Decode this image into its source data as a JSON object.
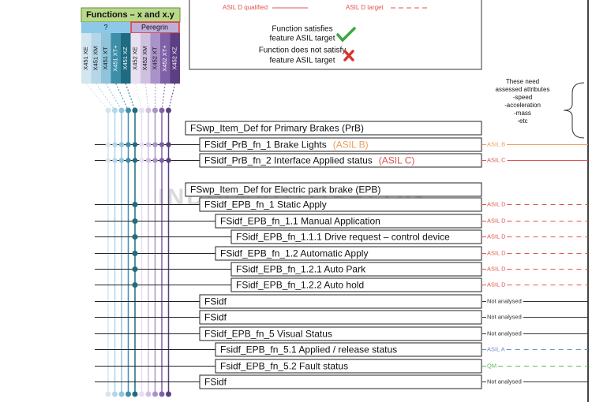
{
  "header": {
    "title": "Functions – x and x.y",
    "group_a": "?",
    "group_b": "Peregrin"
  },
  "columns": [
    {
      "label": "X451 XE",
      "color": "#d3e6f0"
    },
    {
      "label": "X451 XM",
      "color": "#b4d6e7"
    },
    {
      "label": "X451 XT",
      "color": "#8fc4da"
    },
    {
      "label": "X451 XT+",
      "color": "#3d8ea8"
    },
    {
      "label": "X451 XZ",
      "color": "#1f6b80"
    },
    {
      "label": "X452 XE",
      "color": "#e8dff0"
    },
    {
      "label": "X452 XM",
      "color": "#cfc0e0"
    },
    {
      "label": "X452 XT",
      "color": "#aa93c8"
    },
    {
      "label": "X452 XT+",
      "color": "#7f61a8"
    },
    {
      "label": "X452 XZ",
      "color": "#5b3f82"
    }
  ],
  "legend": {
    "qualified": "ASIL D qualified",
    "target": "ASIL D target",
    "satisfies": [
      "Function satisfies",
      "feature ASIL target"
    ],
    "not_satisfies": [
      "Function does not satisfy",
      "feature ASIL target"
    ]
  },
  "note": [
    "These need",
    "assessed attributes",
    "-speed",
    "-acceleration",
    "-mass",
    "-etc"
  ],
  "watermark": "INDIANAUTOSBLOG",
  "rows": [
    {
      "label": "FSwp_Item_Def for Primary Brakes (PrB)",
      "level": 0
    },
    {
      "label": "FSidf_PrB_fn_1 Brake Lights",
      "tag": "(ASIL B)",
      "level": 1,
      "dots": "all",
      "right": {
        "text": "ASIL B",
        "color": "#e8a060",
        "dashed": false
      }
    },
    {
      "label": "FSidf_PrB_fn_2 Interface Applied status",
      "tag": "(ASIL C)",
      "level": 1,
      "dots": "all",
      "right": {
        "text": "ASIL C",
        "color": "#d9534f",
        "dashed": false
      }
    },
    {
      "label": "FSwp_Item_Def for Electric park brake (EPB)",
      "level": 0
    },
    {
      "label": "FSidf_EPB_fn_1 Static Apply",
      "level": 1,
      "dots": "one",
      "right": {
        "text": "ASIL D",
        "color": "#e0554f",
        "dashed": true
      }
    },
    {
      "label": "FSidf_EPB_fn_1.1 Manual Application",
      "level": 2,
      "dots": "one",
      "right": {
        "text": "ASIL D",
        "color": "#e0554f",
        "dashed": true
      }
    },
    {
      "label": "FSidf_EPB_fn_1.1.1 Drive request – control device",
      "level": 3,
      "dots": "one",
      "right": {
        "text": "ASIL D",
        "color": "#e0554f",
        "dashed": true
      }
    },
    {
      "label": "FSidf_EPB_fn_1.2 Automatic Apply",
      "level": 2,
      "dots": "one",
      "right": {
        "text": "ASIL D",
        "color": "#e0554f",
        "dashed": true
      }
    },
    {
      "label": "FSidf_EPB_fn_1.2.1 Auto Park",
      "level": 3,
      "dots": "one",
      "right": {
        "text": "ASIL D",
        "color": "#e0554f",
        "dashed": true
      }
    },
    {
      "label": "FSidf_EPB_fn_1.2.2 Auto hold",
      "level": 3,
      "dots": "one",
      "right": {
        "text": "ASIL D",
        "color": "#e0554f",
        "dashed": true
      }
    },
    {
      "label": "FSidf",
      "level": 1,
      "right": {
        "text": "Not analysed",
        "color": "#333333",
        "dashed": false
      }
    },
    {
      "label": "FSidf",
      "level": 1,
      "right": {
        "text": "Not analysed",
        "color": "#333333",
        "dashed": false
      }
    },
    {
      "label": "FSidf_EPB_fn_5 Visual Status",
      "level": 1,
      "right": {
        "text": "Not analysed",
        "color": "#333333",
        "dashed": false
      }
    },
    {
      "label": "Fsidf_EPB_fn_5.1 Applied / release status",
      "level": 2,
      "right": {
        "text": "ASIL A",
        "color": "#6b8fc9",
        "dashed": true
      }
    },
    {
      "label": "Fsidf_EPB_fn_5.2 Fault status",
      "level": 2,
      "right": {
        "text": "QM",
        "color": "#5cb85c",
        "dashed": true
      }
    },
    {
      "label": "FSidf",
      "level": 1,
      "right": {
        "text": "Not analysed",
        "color": "#333333",
        "dashed": false
      }
    }
  ]
}
